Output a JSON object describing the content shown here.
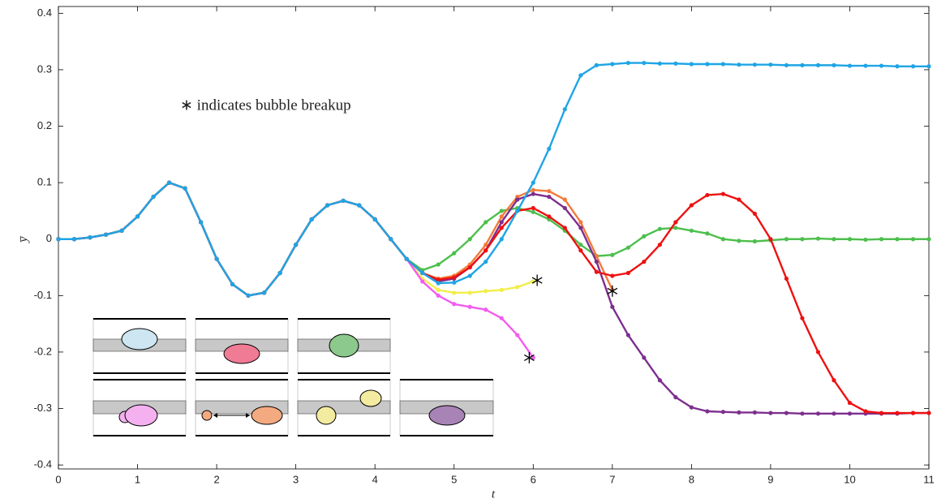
{
  "chart_data": {
    "type": "line",
    "xlabel": "t",
    "ylabel": "y̅",
    "annotation": "∗ indicates bubble breakup",
    "xlim": [
      0,
      11
    ],
    "ylim": [
      -0.407,
      0.412
    ],
    "xticks": [
      0,
      1,
      2,
      3,
      4,
      5,
      6,
      7,
      8,
      9,
      10,
      11
    ],
    "yticks": [
      -0.4,
      -0.3,
      -0.2,
      -0.1,
      0,
      0.1,
      0.2,
      0.3,
      0.4
    ],
    "x": [
      0,
      0.2,
      0.4,
      0.6,
      0.8,
      1,
      1.2,
      1.4,
      1.6,
      1.8,
      2,
      2.2,
      2.4,
      2.6,
      2.8,
      3,
      3.2,
      3.4,
      3.6,
      3.8,
      4,
      4.2,
      4.4,
      4.6,
      4.8,
      5,
      5.2,
      5.4,
      5.6,
      5.8,
      6,
      6.2,
      6.4,
      6.6,
      6.8,
      7,
      7.2,
      7.4,
      7.6,
      7.8,
      8,
      8.2,
      8.4,
      8.6,
      8.8,
      9,
      9.2,
      9.4,
      9.6,
      9.8,
      10,
      10.2,
      10.4,
      10.6,
      10.8,
      11
    ],
    "series": [
      {
        "color": "#f2ee4a",
        "values": [
          0,
          0,
          0.003,
          0.008,
          0.015,
          0.04,
          0.075,
          0.1,
          0.09,
          0.03,
          -0.035,
          -0.08,
          -0.1,
          -0.095,
          -0.06,
          -0.01,
          0.035,
          0.06,
          0.068,
          0.06,
          0.035,
          0,
          -0.035,
          -0.07,
          -0.09,
          -0.095,
          -0.095,
          -0.092,
          -0.09,
          -0.085,
          -0.075,
          null,
          null,
          null,
          null,
          null,
          null,
          null,
          null,
          null,
          null,
          null,
          null,
          null,
          null,
          null,
          null,
          null,
          null,
          null,
          null,
          null,
          null,
          null,
          null,
          null
        ]
      },
      {
        "color": "#f25cf0",
        "values": [
          0,
          0,
          0.003,
          0.008,
          0.015,
          0.04,
          0.075,
          0.1,
          0.09,
          0.03,
          -0.035,
          -0.08,
          -0.1,
          -0.095,
          -0.06,
          -0.01,
          0.035,
          0.06,
          0.068,
          0.06,
          0.035,
          0,
          -0.035,
          -0.075,
          -0.1,
          -0.115,
          -0.12,
          -0.125,
          -0.14,
          -0.17,
          -0.21,
          null,
          null,
          null,
          null,
          null,
          null,
          null,
          null,
          null,
          null,
          null,
          null,
          null,
          null,
          null,
          null,
          null,
          null,
          null,
          null,
          null,
          null,
          null,
          null,
          null
        ]
      },
      {
        "color": "#4cbf4c",
        "values": [
          0,
          0,
          0.003,
          0.008,
          0.015,
          0.04,
          0.075,
          0.1,
          0.09,
          0.03,
          -0.035,
          -0.08,
          -0.1,
          -0.095,
          -0.06,
          -0.01,
          0.035,
          0.06,
          0.068,
          0.06,
          0.035,
          0,
          -0.035,
          -0.055,
          -0.045,
          -0.025,
          0,
          0.03,
          0.05,
          0.055,
          0.048,
          0.035,
          0.015,
          -0.01,
          -0.03,
          -0.028,
          -0.015,
          0.005,
          0.018,
          0.02,
          0.015,
          0.01,
          0,
          -0.003,
          -0.004,
          -0.002,
          0,
          0,
          0.001,
          0,
          0,
          -0.001,
          0,
          0,
          0,
          0
        ]
      },
      {
        "color": "#f27b3a",
        "values": [
          0,
          0,
          0.003,
          0.008,
          0.015,
          0.04,
          0.075,
          0.1,
          0.09,
          0.03,
          -0.035,
          -0.08,
          -0.1,
          -0.095,
          -0.06,
          -0.01,
          0.035,
          0.06,
          0.068,
          0.06,
          0.035,
          0,
          -0.035,
          -0.06,
          -0.07,
          -0.065,
          -0.045,
          -0.01,
          0.04,
          0.075,
          0.087,
          0.085,
          0.07,
          0.03,
          -0.03,
          -0.09,
          null,
          null,
          null,
          null,
          null,
          null,
          null,
          null,
          null,
          null,
          null,
          null,
          null,
          null,
          null,
          null,
          null,
          null,
          null,
          null
        ]
      },
      {
        "color": "#7d2f8e",
        "values": [
          0,
          0,
          0.003,
          0.008,
          0.015,
          0.04,
          0.075,
          0.1,
          0.09,
          0.03,
          -0.035,
          -0.08,
          -0.1,
          -0.095,
          -0.06,
          -0.01,
          0.035,
          0.06,
          0.068,
          0.06,
          0.035,
          0,
          -0.035,
          -0.06,
          -0.075,
          -0.07,
          -0.05,
          -0.02,
          0.03,
          0.07,
          0.08,
          0.075,
          0.055,
          0.02,
          -0.04,
          -0.12,
          -0.17,
          -0.21,
          -0.25,
          -0.28,
          -0.298,
          -0.305,
          -0.306,
          -0.307,
          -0.307,
          -0.308,
          -0.308,
          -0.309,
          -0.309,
          -0.309,
          -0.309,
          -0.309,
          -0.309,
          -0.309,
          -0.308,
          -0.308
        ]
      },
      {
        "color": "#ee1111",
        "values": [
          0,
          0,
          0.003,
          0.008,
          0.015,
          0.04,
          0.075,
          0.1,
          0.09,
          0.03,
          -0.035,
          -0.08,
          -0.1,
          -0.095,
          -0.06,
          -0.01,
          0.035,
          0.06,
          0.068,
          0.06,
          0.035,
          0,
          -0.035,
          -0.06,
          -0.072,
          -0.068,
          -0.05,
          -0.02,
          0.02,
          0.05,
          0.055,
          0.04,
          0.02,
          -0.02,
          -0.058,
          -0.065,
          -0.06,
          -0.04,
          -0.01,
          0.03,
          0.06,
          0.078,
          0.08,
          0.07,
          0.045,
          0,
          -0.07,
          -0.14,
          -0.2,
          -0.25,
          -0.29,
          -0.305,
          -0.308,
          -0.308,
          -0.308,
          -0.308
        ]
      },
      {
        "color": "#1ea5e6",
        "values": [
          0,
          0,
          0.003,
          0.008,
          0.015,
          0.04,
          0.075,
          0.1,
          0.09,
          0.03,
          -0.035,
          -0.08,
          -0.1,
          -0.095,
          -0.06,
          -0.01,
          0.035,
          0.06,
          0.068,
          0.06,
          0.035,
          0,
          -0.035,
          -0.06,
          -0.078,
          -0.077,
          -0.065,
          -0.04,
          0,
          0.05,
          0.1,
          0.16,
          0.23,
          0.29,
          0.308,
          0.31,
          0.312,
          0.312,
          0.311,
          0.311,
          0.31,
          0.31,
          0.31,
          0.309,
          0.309,
          0.309,
          0.308,
          0.308,
          0.308,
          0.308,
          0.307,
          0.307,
          0.307,
          0.306,
          0.306,
          0.306
        ]
      }
    ],
    "breakups": {
      "x": [
        6.05,
        5.95,
        7.0
      ],
      "y": [
        -0.073,
        -0.21,
        -0.092
      ]
    }
  }
}
